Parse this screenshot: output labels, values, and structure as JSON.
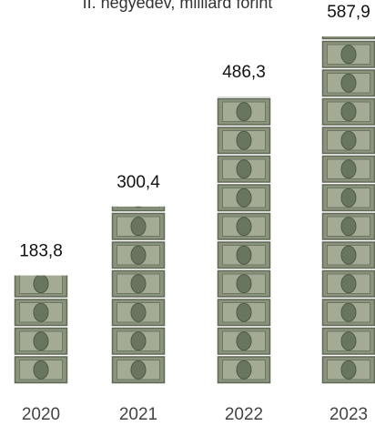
{
  "chart_data": {
    "type": "pictogram-bar",
    "title": "II. negyedév, milliárd forint",
    "categories": [
      "2020",
      "2021",
      "2022",
      "2023"
    ],
    "values": [
      183.8,
      300.4,
      486.3,
      587.9
    ],
    "value_labels": [
      "183,8",
      "300,4",
      "486,3",
      "587,9"
    ],
    "color": "#8a937c"
  }
}
